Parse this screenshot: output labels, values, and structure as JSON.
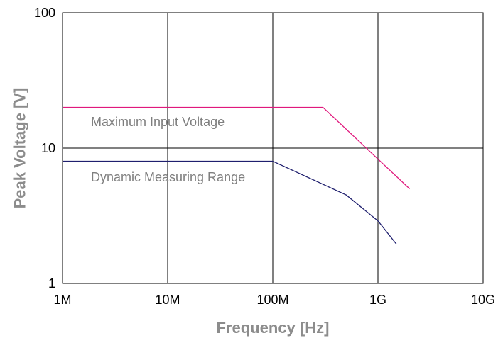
{
  "chart_data": {
    "type": "line",
    "title": "",
    "xlabel": "Frequency [Hz]",
    "ylabel": "Peak Voltage [V]",
    "x_scale": "log",
    "y_scale": "log",
    "xlim": [
      1000000,
      10000000000
    ],
    "ylim": [
      1,
      100
    ],
    "grid": true,
    "legend": "none",
    "x_ticks": [
      {
        "value": 1000000,
        "label": "1M"
      },
      {
        "value": 10000000,
        "label": "10M"
      },
      {
        "value": 100000000,
        "label": "100M"
      },
      {
        "value": 1000000000,
        "label": "1G"
      },
      {
        "value": 10000000000,
        "label": "10G"
      }
    ],
    "y_ticks": [
      {
        "value": 1,
        "label": "1"
      },
      {
        "value": 10,
        "label": "10"
      },
      {
        "value": 100,
        "label": "100"
      }
    ],
    "series": [
      {
        "name": "Maximum Input Voltage",
        "color": "#e0197d",
        "x": [
          1000000,
          300000000,
          2000000000
        ],
        "y": [
          20,
          20,
          5
        ]
      },
      {
        "name": "Dynamic Measuring Range",
        "color": "#1f1f6e",
        "x": [
          1000000,
          100000000,
          500000000,
          1000000000,
          1500000000
        ],
        "y": [
          8,
          8,
          4.5,
          2.9,
          1.95
        ]
      }
    ]
  }
}
